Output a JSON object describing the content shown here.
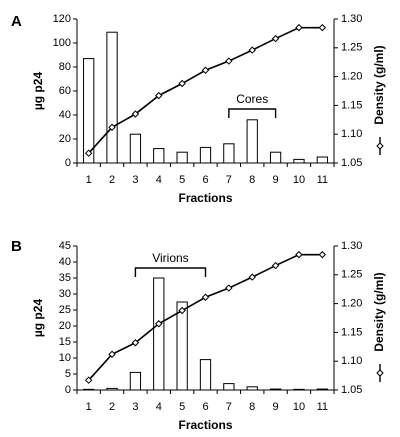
{
  "chart_data": [
    {
      "type": "bar+line",
      "panel_label": "A",
      "xlabel": "Fractions",
      "ylabel": "µg p24",
      "y2label": "Density (g/ml)",
      "categories": [
        "1",
        "2",
        "3",
        "4",
        "5",
        "6",
        "7",
        "8",
        "9",
        "10",
        "11"
      ],
      "ylim": [
        0,
        120
      ],
      "yticks": [
        "0",
        "20",
        "40",
        "60",
        "80",
        "100",
        "120"
      ],
      "y2lim": [
        1.05,
        1.3
      ],
      "y2ticks": [
        "1.05",
        "1.10",
        "1.15",
        "1.20",
        "1.25",
        "1.30"
      ],
      "bars": [
        87,
        109,
        24,
        12,
        9,
        13,
        16,
        36,
        9,
        3,
        5
      ],
      "density": [
        1.067,
        1.112,
        1.135,
        1.167,
        1.188,
        1.211,
        1.227,
        1.246,
        1.266,
        1.285,
        1.285
      ],
      "bracket": {
        "label": "Cores",
        "from": 7,
        "to": 9
      }
    },
    {
      "type": "bar+line",
      "panel_label": "B",
      "xlabel": "Fractions",
      "ylabel": "µg p24",
      "y2label": "Density (g/ml)",
      "categories": [
        "1",
        "2",
        "3",
        "4",
        "5",
        "6",
        "7",
        "8",
        "9",
        "10",
        "11"
      ],
      "ylim": [
        0,
        45
      ],
      "yticks": [
        "0",
        "5",
        "10",
        "15",
        "20",
        "25",
        "30",
        "35",
        "40",
        "45"
      ],
      "y2lim": [
        1.05,
        1.3
      ],
      "y2ticks": [
        "1.05",
        "1.10",
        "1.15",
        "1.20",
        "1.25",
        "1.30"
      ],
      "bars": [
        0.2,
        0.5,
        5.5,
        35,
        27.5,
        9.5,
        2,
        1,
        0.3,
        0.2,
        0.3
      ],
      "density": [
        1.067,
        1.112,
        1.132,
        1.165,
        1.188,
        1.211,
        1.227,
        1.246,
        1.266,
        1.285,
        1.285
      ],
      "bracket": {
        "label": "Virions",
        "from": 3,
        "to": 6
      }
    }
  ]
}
